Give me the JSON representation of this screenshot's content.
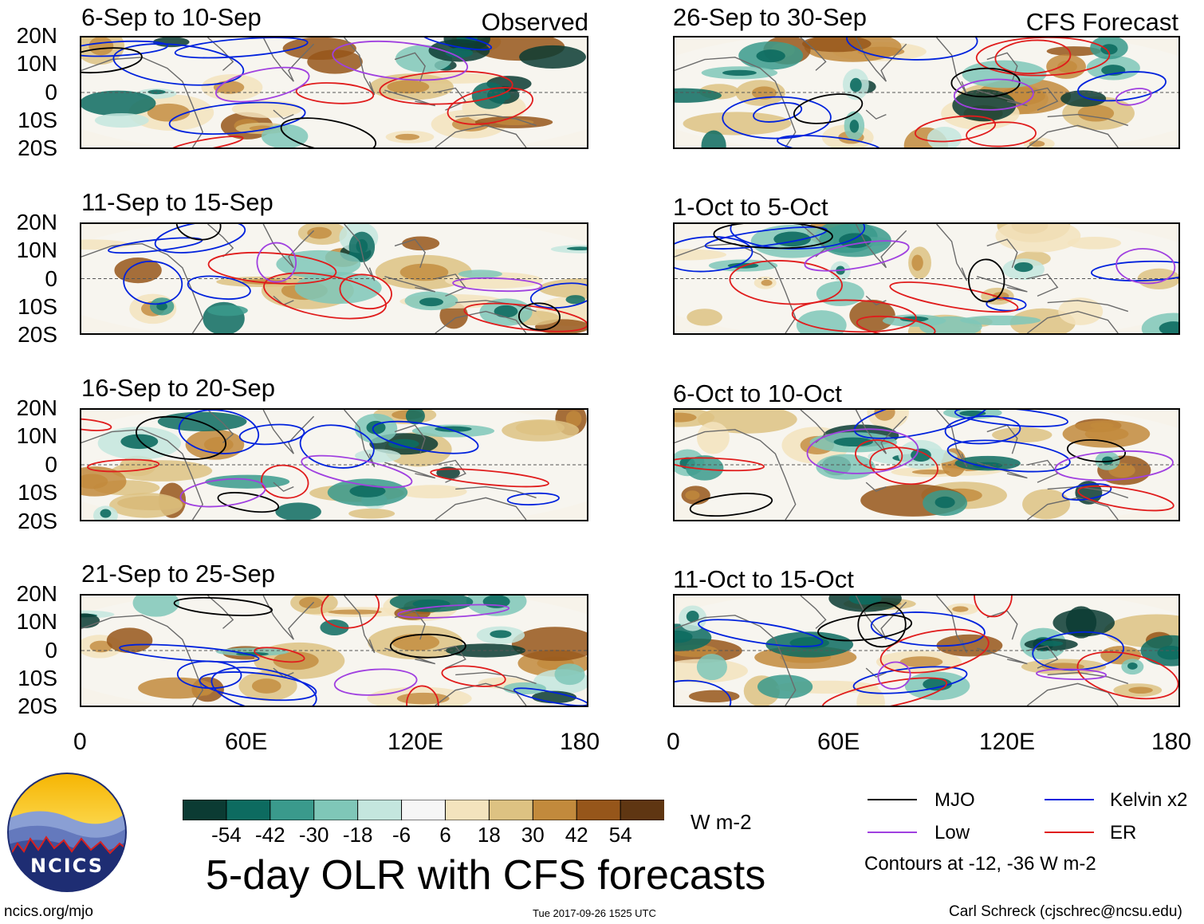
{
  "figure": {
    "title": "5-day OLR with CFS forecasts",
    "url": "ncics.org/mjo",
    "timestamp": "Tue 2017-09-26 1525 UTC",
    "author": "Carl Schreck (cjschrec@ncsu.edu)",
    "logo_text": "NCICS"
  },
  "observed_tag": "Observed",
  "forecast_tag": "CFS Forecast",
  "lat_labels": [
    "20N",
    "10N",
    "0",
    "10S",
    "20S"
  ],
  "lon_labels": [
    "0",
    "60E",
    "120E",
    "180"
  ],
  "colorbar": {
    "units": "W m-2",
    "tick_labels": [
      "-54",
      "-42",
      "-30",
      "-18",
      "-6",
      "6",
      "18",
      "30",
      "42",
      "54"
    ],
    "colors": [
      "#0b3b33",
      "#0d6b60",
      "#3a9a8c",
      "#7fc7b8",
      "#c4e6de",
      "#f6f6f6",
      "#f3e3bd",
      "#ddc282",
      "#c28a3c",
      "#96561a",
      "#5f3612"
    ]
  },
  "legend": {
    "items": [
      {
        "label": "MJO",
        "color": "#000000"
      },
      {
        "label": "Kelvin x2",
        "color": "#0022dd"
      },
      {
        "label": "Low",
        "color": "#a040e0"
      },
      {
        "label": "ER",
        "color": "#e01c1c"
      }
    ],
    "note": "Contours at -12, -36 W m-2"
  },
  "panels": {
    "left": [
      {
        "label": "6-Sep to 10-Sep"
      },
      {
        "label": "11-Sep to 15-Sep"
      },
      {
        "label": "16-Sep to 20-Sep"
      },
      {
        "label": "21-Sep to 25-Sep"
      }
    ],
    "right": [
      {
        "label": "26-Sep to 30-Sep"
      },
      {
        "label": "1-Oct to 5-Oct"
      },
      {
        "label": "6-Oct to 10-Oct"
      },
      {
        "label": "11-Oct to 15-Oct"
      }
    ]
  }
}
